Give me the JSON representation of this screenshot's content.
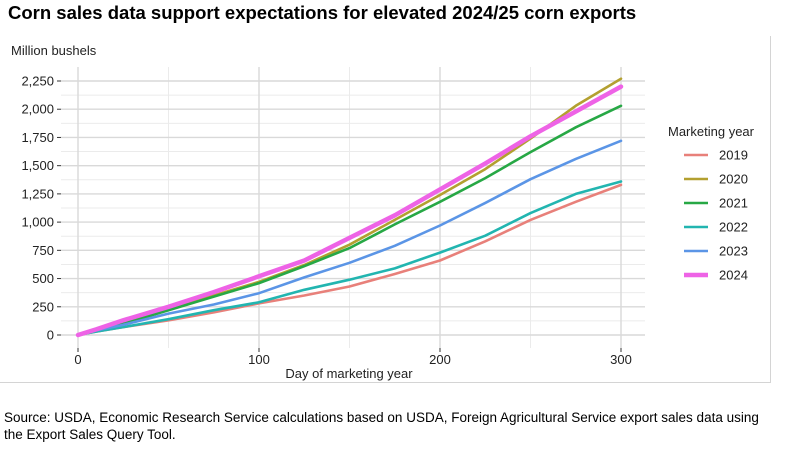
{
  "header": {
    "title": "Corn sales data support expectations for elevated 2024/25 corn exports"
  },
  "footer": {
    "source": "Source: USDA, Economic Research Service calculations based on USDA, Foreign Agricultural Service export sales data using the Export Sales Query Tool."
  },
  "chart_data": {
    "type": "line",
    "title": "Corn sales data support expectations for elevated 2024/25 corn exports",
    "xlabel": "Day of marketing year",
    "ylabel": "Million bushels",
    "xlim": [
      0,
      300
    ],
    "ylim": [
      0,
      2300
    ],
    "x_ticks": [
      0,
      100,
      200,
      300
    ],
    "y_ticks": [
      0,
      250,
      500,
      750,
      1000,
      1250,
      1500,
      1750,
      2000,
      2250
    ],
    "x_tick_labels": [
      "0",
      "100",
      "200",
      "300"
    ],
    "y_tick_labels": [
      "0",
      "250",
      "500",
      "750",
      "1,000",
      "1,250",
      "1,500",
      "1,750",
      "2,000",
      "2,250"
    ],
    "grid": true,
    "legend_title": "Marketing year",
    "legend_position": "right",
    "series": [
      {
        "name": "2019",
        "color": "#e8807a",
        "x": [
          0,
          10,
          25,
          50,
          75,
          100,
          125,
          150,
          175,
          200,
          225,
          250,
          275,
          300
        ],
        "y": [
          0,
          30,
          70,
          130,
          200,
          280,
          350,
          430,
          540,
          660,
          830,
          1020,
          1180,
          1330
        ]
      },
      {
        "name": "2020",
        "color": "#b3a030",
        "x": [
          0,
          10,
          25,
          50,
          75,
          100,
          125,
          150,
          175,
          200,
          225,
          250,
          275,
          300
        ],
        "y": [
          0,
          45,
          110,
          230,
          350,
          470,
          620,
          800,
          1020,
          1240,
          1470,
          1740,
          2030,
          2270
        ]
      },
      {
        "name": "2021",
        "color": "#27a845",
        "x": [
          0,
          10,
          25,
          50,
          75,
          100,
          125,
          150,
          175,
          200,
          225,
          250,
          275,
          300
        ],
        "y": [
          0,
          40,
          100,
          220,
          340,
          460,
          610,
          770,
          980,
          1180,
          1390,
          1620,
          1840,
          2030
        ]
      },
      {
        "name": "2022",
        "color": "#22b5b0",
        "x": [
          0,
          10,
          25,
          50,
          75,
          100,
          125,
          150,
          175,
          200,
          225,
          250,
          275,
          300
        ],
        "y": [
          0,
          30,
          70,
          140,
          220,
          290,
          400,
          490,
          590,
          730,
          880,
          1080,
          1250,
          1360
        ]
      },
      {
        "name": "2023",
        "color": "#5b95e6",
        "x": [
          0,
          10,
          25,
          50,
          75,
          100,
          125,
          150,
          175,
          200,
          225,
          250,
          275,
          300
        ],
        "y": [
          0,
          40,
          90,
          190,
          270,
          370,
          510,
          640,
          790,
          970,
          1170,
          1380,
          1560,
          1720
        ]
      },
      {
        "name": "2024",
        "color": "#ee63e6",
        "x": [
          0,
          10,
          25,
          50,
          75,
          100,
          125,
          150,
          175,
          200,
          225,
          250,
          275,
          300
        ],
        "y": [
          0,
          50,
          130,
          250,
          380,
          520,
          660,
          860,
          1060,
          1290,
          1520,
          1760,
          1980,
          2200
        ]
      }
    ]
  }
}
